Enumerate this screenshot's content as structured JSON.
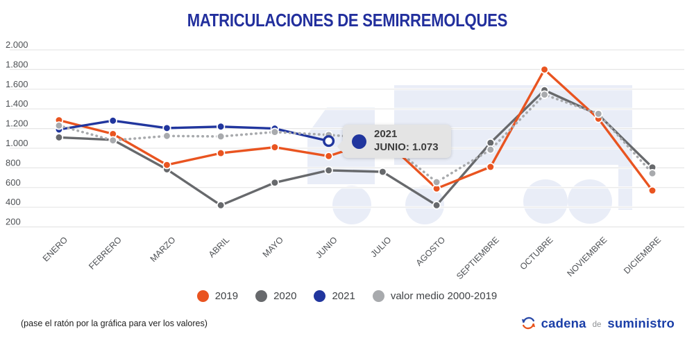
{
  "title": "MATRICULACIONES DE SEMIRREMOLQUES",
  "chart_data": {
    "type": "line",
    "title": "MATRICULACIONES DE SEMIRREMOLQUES",
    "categories": [
      "ENERO",
      "FEBRERO",
      "MARZO",
      "ABRIL",
      "MAYO",
      "JUNIO",
      "JULIO",
      "AGOSTO",
      "SEPTIEMBRE",
      "OCTUBRE",
      "NOVIEMBRE",
      "DICIEMBRE"
    ],
    "y_tick_labels": [
      "2.000",
      "1.800",
      "1.600",
      "1.400",
      "1.200",
      "1.000",
      "800",
      "600",
      "400",
      "200"
    ],
    "ylim": [
      200,
      2000
    ],
    "grid": true,
    "legend_position": "bottom",
    "series": [
      {
        "name": "2019",
        "color": "#e95420",
        "line_style": "solid",
        "values": [
          1285,
          1145,
          830,
          950,
          1010,
          920,
          1100,
          590,
          810,
          1800,
          1300,
          570
        ]
      },
      {
        "name": "2020",
        "color": "#67696c",
        "line_style": "solid",
        "values": [
          1110,
          1085,
          785,
          420,
          650,
          775,
          760,
          420,
          1055,
          1590,
          1340,
          805
        ]
      },
      {
        "name": "2021",
        "color": "#21369e",
        "line_style": "solid",
        "values": [
          1190,
          1280,
          1205,
          1220,
          1200,
          1073,
          null,
          null,
          null,
          null,
          null,
          null
        ]
      },
      {
        "name": "valor medio 2000-2019",
        "color": "#a8aaad",
        "line_style": "dotted",
        "values": [
          1230,
          1080,
          1125,
          1120,
          1165,
          1135,
          1095,
          655,
          985,
          1545,
          1350,
          745
        ]
      }
    ],
    "highlighted_point": {
      "series": "2021",
      "category": "JUNIO",
      "value": 1073
    }
  },
  "tooltip": {
    "title": "2021",
    "text": "JUNIO: 1.073",
    "color": "#21369e"
  },
  "legend": {
    "items": [
      {
        "label": "2019",
        "color": "#e95420"
      },
      {
        "label": "2020",
        "color": "#67696c"
      },
      {
        "label": "2021",
        "color": "#21369e"
      },
      {
        "label": "valor medio 2000-2019",
        "color": "#a8aaad"
      }
    ]
  },
  "footer": {
    "note": "(pase el ratón por la gráfica para ver los valores)"
  },
  "logo": {
    "word1": "cadena",
    "word2": "de",
    "word3": "suministro"
  },
  "colors": {
    "title": "#222f9d",
    "axis_text": "#4d5054",
    "grid": "#e6e6e6",
    "watermark": "#e9edf7",
    "tooltip_bg": "#e4e4e4"
  }
}
